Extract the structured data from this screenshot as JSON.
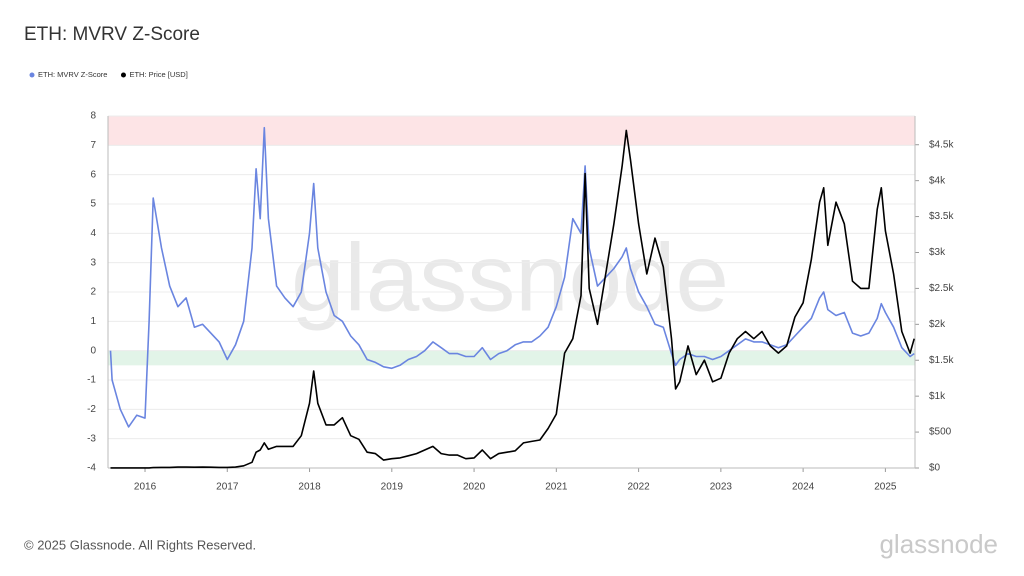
{
  "chart_data": {
    "type": "line",
    "title": "ETH: MVRV Z-Score",
    "footer": "© 2025 Glassnode. All Rights Reserved.",
    "watermark": "glassnode",
    "logo": "glassnode",
    "x": [
      2015.58,
      2015.6,
      2015.7,
      2015.8,
      2015.9,
      2016.0,
      2016.05,
      2016.1,
      2016.2,
      2016.3,
      2016.4,
      2016.5,
      2016.6,
      2016.7,
      2016.8,
      2016.9,
      2017.0,
      2017.1,
      2017.2,
      2017.3,
      2017.35,
      2017.4,
      2017.45,
      2017.5,
      2017.6,
      2017.7,
      2017.8,
      2017.9,
      2018.0,
      2018.05,
      2018.1,
      2018.2,
      2018.3,
      2018.4,
      2018.5,
      2018.6,
      2018.7,
      2018.8,
      2018.9,
      2019.0,
      2019.1,
      2019.2,
      2019.3,
      2019.4,
      2019.5,
      2019.6,
      2019.7,
      2019.8,
      2019.9,
      2020.0,
      2020.1,
      2020.2,
      2020.3,
      2020.4,
      2020.5,
      2020.6,
      2020.7,
      2020.8,
      2020.9,
      2021.0,
      2021.1,
      2021.2,
      2021.3,
      2021.35,
      2021.4,
      2021.5,
      2021.6,
      2021.7,
      2021.8,
      2021.85,
      2021.9,
      2022.0,
      2022.1,
      2022.2,
      2022.3,
      2022.4,
      2022.45,
      2022.5,
      2022.6,
      2022.7,
      2022.8,
      2022.9,
      2023.0,
      2023.1,
      2023.2,
      2023.3,
      2023.4,
      2023.5,
      2023.6,
      2023.7,
      2023.8,
      2023.9,
      2024.0,
      2024.1,
      2024.2,
      2024.25,
      2024.3,
      2024.4,
      2024.5,
      2024.6,
      2024.7,
      2024.8,
      2024.9,
      2024.95,
      2025.0,
      2025.1,
      2025.2,
      2025.3,
      2025.35
    ],
    "series": [
      {
        "name": "ETH: MVRV Z-Score",
        "color": "#6a85e0",
        "axis": "y",
        "values": [
          0,
          -1,
          -2,
          -2.6,
          -2.2,
          -2.3,
          1,
          5.2,
          3.5,
          2.2,
          1.5,
          1.8,
          0.8,
          0.9,
          0.6,
          0.3,
          -0.3,
          0.2,
          1.0,
          3.5,
          6.2,
          4.5,
          7.6,
          4.5,
          2.2,
          1.8,
          1.5,
          2.0,
          4.0,
          5.7,
          3.5,
          2.0,
          1.2,
          1.0,
          0.5,
          0.2,
          -0.3,
          -0.4,
          -0.55,
          -0.6,
          -0.5,
          -0.3,
          -0.2,
          0.0,
          0.3,
          0.1,
          -0.1,
          -0.1,
          -0.2,
          -0.2,
          0.1,
          -0.3,
          -0.1,
          0.0,
          0.2,
          0.3,
          0.3,
          0.5,
          0.8,
          1.5,
          2.5,
          4.5,
          4.0,
          6.3,
          3.5,
          2.2,
          2.5,
          2.8,
          3.2,
          3.5,
          2.8,
          2.0,
          1.5,
          0.9,
          0.8,
          -0.1,
          -0.5,
          -0.3,
          -0.1,
          -0.2,
          -0.2,
          -0.3,
          -0.2,
          0.0,
          0.2,
          0.4,
          0.3,
          0.3,
          0.2,
          0.1,
          0.2,
          0.5,
          0.8,
          1.1,
          1.8,
          2.0,
          1.4,
          1.2,
          1.3,
          0.6,
          0.5,
          0.6,
          1.1,
          1.6,
          1.3,
          0.8,
          0.1,
          -0.2,
          -0.1
        ]
      },
      {
        "name": "ETH: Price [USD]",
        "color": "#000000",
        "axis": "y2",
        "values": [
          1,
          1,
          1,
          1,
          1,
          1,
          2,
          6,
          8,
          9,
          12,
          12,
          11,
          12,
          11,
          9,
          8,
          12,
          30,
          80,
          220,
          250,
          350,
          260,
          300,
          300,
          300,
          450,
          900,
          1350,
          900,
          600,
          600,
          700,
          450,
          400,
          220,
          200,
          110,
          130,
          140,
          170,
          200,
          250,
          300,
          200,
          180,
          180,
          130,
          140,
          250,
          130,
          200,
          220,
          240,
          350,
          370,
          390,
          550,
          750,
          1600,
          1800,
          2400,
          4100,
          2500,
          2000,
          2700,
          3400,
          4200,
          4700,
          4300,
          3400,
          2700,
          3200,
          2800,
          1800,
          1100,
          1200,
          1700,
          1300,
          1500,
          1200,
          1250,
          1600,
          1800,
          1900,
          1800,
          1900,
          1700,
          1600,
          1700,
          2100,
          2300,
          2900,
          3700,
          3900,
          3100,
          3700,
          3400,
          2600,
          2500,
          2500,
          3600,
          3900,
          3300,
          2700,
          1900,
          1600,
          1800
        ]
      }
    ],
    "xlim": [
      2015.55,
      2025.36
    ],
    "xticks": [
      2016,
      2017,
      2018,
      2019,
      2020,
      2021,
      2022,
      2023,
      2024,
      2025
    ],
    "ylim": [
      -4,
      8
    ],
    "yticks": [
      -4,
      -3,
      -2,
      -1,
      0,
      1,
      2,
      3,
      4,
      5,
      6,
      7,
      8
    ],
    "y2lim": [
      0,
      4900
    ],
    "y2ticks": [
      {
        "value": 0,
        "label": "$0"
      },
      {
        "value": 500,
        "label": "$500"
      },
      {
        "value": 1000,
        "label": "$1k"
      },
      {
        "value": 1500,
        "label": "$1.5k"
      },
      {
        "value": 2000,
        "label": "$2k"
      },
      {
        "value": 2500,
        "label": "$2.5k"
      },
      {
        "value": 3000,
        "label": "$3k"
      },
      {
        "value": 3500,
        "label": "$3.5k"
      },
      {
        "value": 4000,
        "label": "$4k"
      },
      {
        "value": 4500,
        "label": "$4.5k"
      }
    ],
    "bands": [
      {
        "from": 7,
        "to": 8,
        "color": "#fde4e6"
      },
      {
        "from": -0.5,
        "to": 0,
        "color": "#e2f4e8"
      }
    ],
    "grid": true
  }
}
